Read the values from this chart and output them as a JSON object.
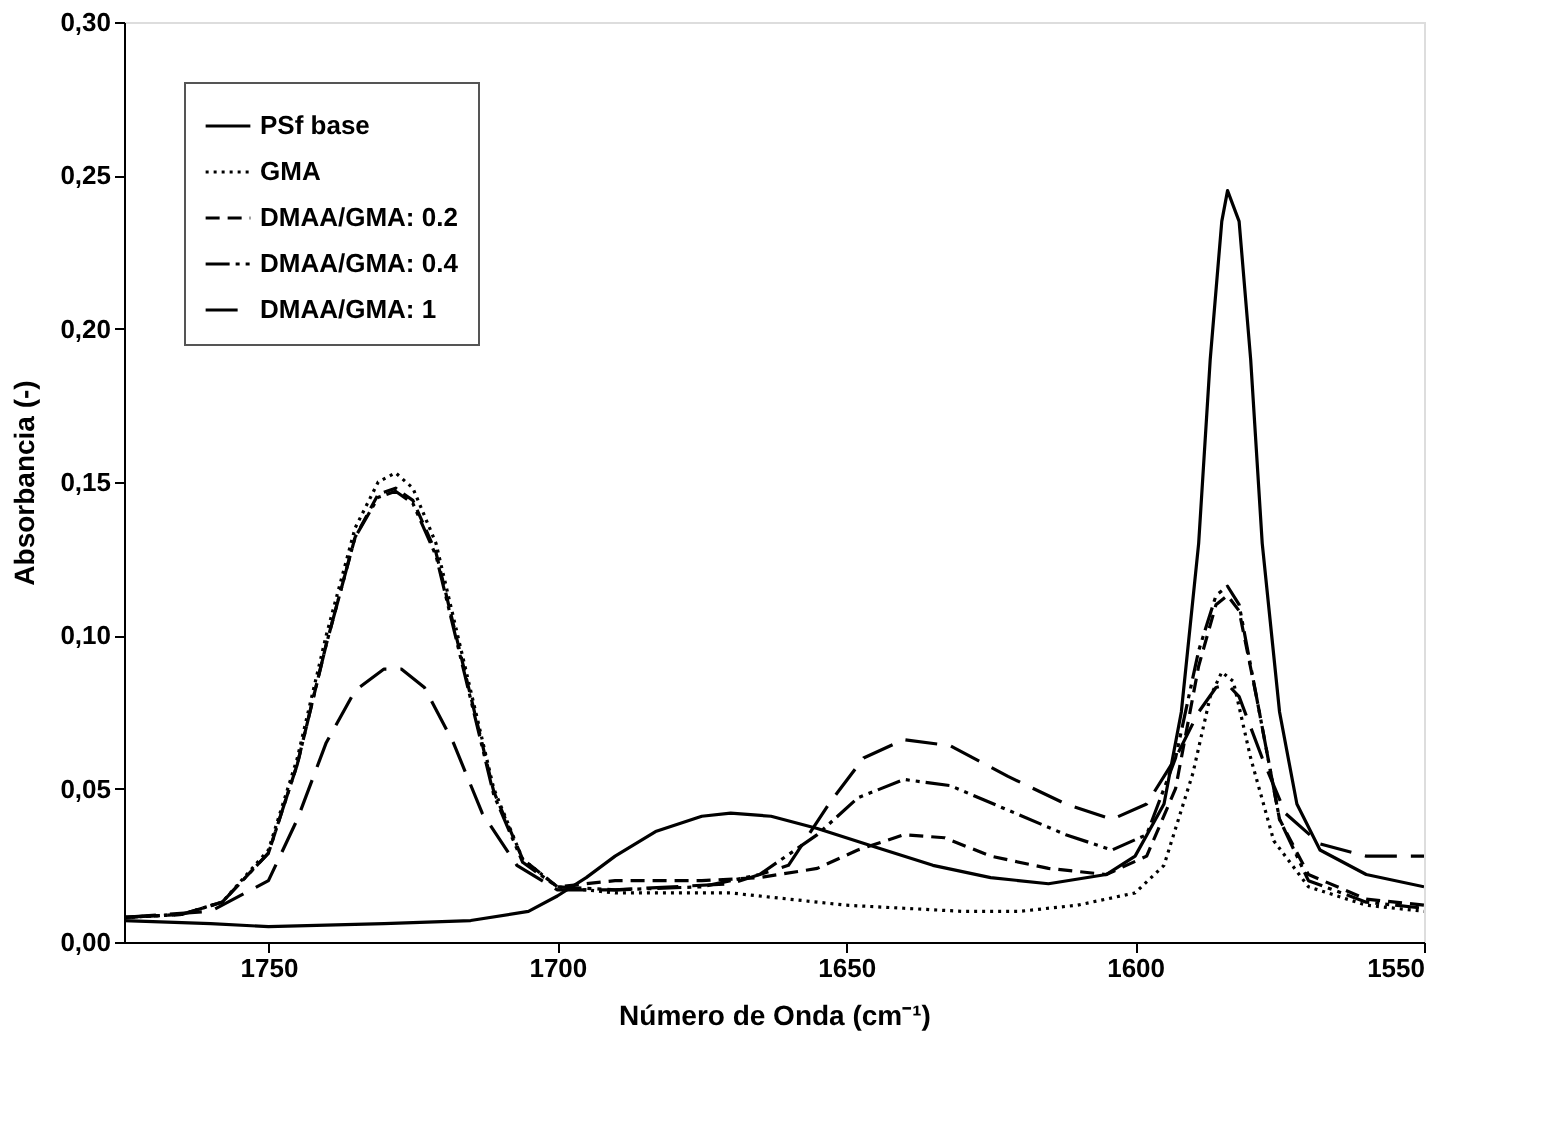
{
  "chart_data": {
    "type": "line",
    "xlabel": "Número de Onda (cm⁻¹)",
    "ylabel": "Absorbancia (-)",
    "xlim": [
      1775,
      1550
    ],
    "xticks": [
      1750,
      1700,
      1650,
      1600,
      1550
    ],
    "ylim": [
      0,
      0.3
    ],
    "yticks": [
      {
        "value": 0,
        "label": "0,00"
      },
      {
        "value": 0.05,
        "label": "0,05"
      },
      {
        "value": 0.1,
        "label": "0,10"
      },
      {
        "value": 0.15,
        "label": "0,15"
      },
      {
        "value": 0.2,
        "label": "0,20"
      },
      {
        "value": 0.25,
        "label": "0,25"
      },
      {
        "value": 0.3,
        "label": "0,30"
      }
    ],
    "grid": false,
    "legend": "top left",
    "marker": "none",
    "series": [
      {
        "name": "PSf base",
        "color": "#000000",
        "line_style": "solid",
        "x": [
          1775,
          1760,
          1750,
          1730,
          1715,
          1705,
          1700,
          1695,
          1690,
          1683,
          1675,
          1670,
          1663,
          1655,
          1645,
          1635,
          1625,
          1615,
          1605,
          1600,
          1595,
          1592,
          1589,
          1587,
          1585,
          1584,
          1582,
          1580,
          1578,
          1575,
          1572,
          1568,
          1560,
          1550
        ],
        "values": [
          0.007,
          0.006,
          0.005,
          0.006,
          0.007,
          0.01,
          0.015,
          0.021,
          0.028,
          0.036,
          0.041,
          0.042,
          0.041,
          0.037,
          0.031,
          0.025,
          0.021,
          0.019,
          0.022,
          0.028,
          0.045,
          0.075,
          0.13,
          0.19,
          0.235,
          0.245,
          0.235,
          0.19,
          0.13,
          0.075,
          0.045,
          0.03,
          0.022,
          0.018
        ]
      },
      {
        "name": "GMA",
        "color": "#000000",
        "line_style": "dotted",
        "x": [
          1775,
          1765,
          1758,
          1750,
          1745,
          1740,
          1735,
          1731,
          1728,
          1725,
          1721,
          1716,
          1711,
          1706,
          1700,
          1690,
          1680,
          1670,
          1660,
          1650,
          1640,
          1630,
          1620,
          1610,
          1600,
          1595,
          1590,
          1587,
          1585,
          1583,
          1580,
          1576,
          1570,
          1560,
          1550
        ],
        "values": [
          0.008,
          0.009,
          0.013,
          0.03,
          0.06,
          0.1,
          0.135,
          0.15,
          0.153,
          0.148,
          0.13,
          0.09,
          0.05,
          0.027,
          0.018,
          0.016,
          0.016,
          0.016,
          0.014,
          0.012,
          0.011,
          0.01,
          0.01,
          0.012,
          0.016,
          0.025,
          0.055,
          0.08,
          0.088,
          0.085,
          0.06,
          0.033,
          0.018,
          0.012,
          0.01
        ]
      },
      {
        "name": "DMAA/GMA: 0.2",
        "color": "#000000",
        "line_style": "dashed",
        "x": [
          1775,
          1765,
          1758,
          1750,
          1745,
          1740,
          1735,
          1731,
          1728,
          1725,
          1721,
          1716,
          1711,
          1706,
          1700,
          1690,
          1675,
          1665,
          1655,
          1648,
          1640,
          1633,
          1625,
          1615,
          1605,
          1598,
          1593,
          1589,
          1586,
          1584,
          1582,
          1579,
          1575,
          1570,
          1560,
          1550
        ],
        "values": [
          0.008,
          0.009,
          0.013,
          0.029,
          0.058,
          0.097,
          0.132,
          0.146,
          0.148,
          0.144,
          0.127,
          0.088,
          0.049,
          0.027,
          0.018,
          0.02,
          0.02,
          0.021,
          0.024,
          0.03,
          0.035,
          0.034,
          0.028,
          0.024,
          0.022,
          0.028,
          0.05,
          0.09,
          0.11,
          0.113,
          0.108,
          0.08,
          0.04,
          0.022,
          0.014,
          0.012
        ]
      },
      {
        "name": "DMAA/GMA: 0.4",
        "color": "#000000",
        "line_style": "dashdotdot",
        "x": [
          1775,
          1765,
          1758,
          1750,
          1745,
          1740,
          1735,
          1731,
          1728,
          1725,
          1721,
          1716,
          1711,
          1706,
          1700,
          1690,
          1675,
          1665,
          1655,
          1648,
          1640,
          1632,
          1622,
          1612,
          1604,
          1598,
          1593,
          1589,
          1586,
          1584,
          1582,
          1579,
          1575,
          1570,
          1560,
          1550
        ],
        "values": [
          0.008,
          0.009,
          0.013,
          0.029,
          0.058,
          0.097,
          0.132,
          0.145,
          0.147,
          0.143,
          0.126,
          0.087,
          0.048,
          0.026,
          0.018,
          0.017,
          0.018,
          0.022,
          0.035,
          0.047,
          0.053,
          0.051,
          0.043,
          0.035,
          0.03,
          0.035,
          0.06,
          0.095,
          0.113,
          0.116,
          0.11,
          0.08,
          0.04,
          0.02,
          0.013,
          0.011
        ]
      },
      {
        "name": "DMAA/GMA: 1",
        "color": "#000000",
        "line_style": "longdash",
        "x": [
          1775,
          1760,
          1750,
          1745,
          1740,
          1735,
          1730,
          1727,
          1723,
          1718,
          1713,
          1707,
          1700,
          1690,
          1680,
          1670,
          1660,
          1653,
          1647,
          1640,
          1632,
          1622,
          1612,
          1604,
          1598,
          1593,
          1589,
          1586,
          1584,
          1582,
          1578,
          1574,
          1568,
          1560,
          1550
        ],
        "values": [
          0.008,
          0.01,
          0.02,
          0.04,
          0.065,
          0.082,
          0.089,
          0.089,
          0.083,
          0.065,
          0.042,
          0.025,
          0.017,
          0.017,
          0.018,
          0.019,
          0.025,
          0.045,
          0.06,
          0.066,
          0.064,
          0.054,
          0.045,
          0.04,
          0.045,
          0.06,
          0.075,
          0.083,
          0.084,
          0.08,
          0.06,
          0.042,
          0.032,
          0.028,
          0.028
        ]
      }
    ]
  }
}
